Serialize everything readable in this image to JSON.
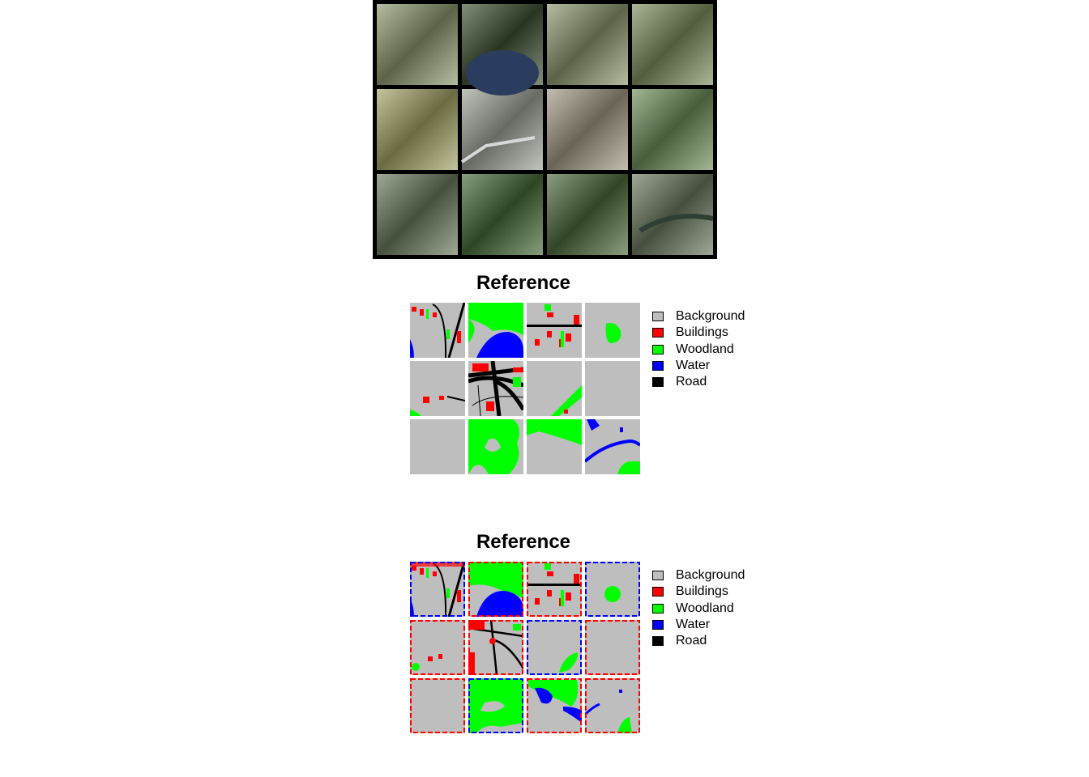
{
  "photo_grid": {
    "rows": 3,
    "cols": 4,
    "tile_colors": [
      "#8e9a6e",
      "#3d5233",
      "#8d9870",
      "#7f8f5f",
      "#a5a468",
      "#a0a49a",
      "#a39b86",
      "#6f8f5a",
      "#6a7c5c",
      "#476b38",
      "#4d6a3a",
      "#6b7a5e"
    ]
  },
  "panels": [
    {
      "title": "Reference"
    },
    {
      "title": "Reference"
    }
  ],
  "legend": {
    "items": [
      {
        "label": "Background",
        "color": "#bebebe"
      },
      {
        "label": "Buildings",
        "color": "#ff0000"
      },
      {
        "label": "Woodland",
        "color": "#00ff00"
      },
      {
        "label": "Water",
        "color": "#0000ff"
      },
      {
        "label": "Road",
        "color": "#000000"
      }
    ]
  }
}
